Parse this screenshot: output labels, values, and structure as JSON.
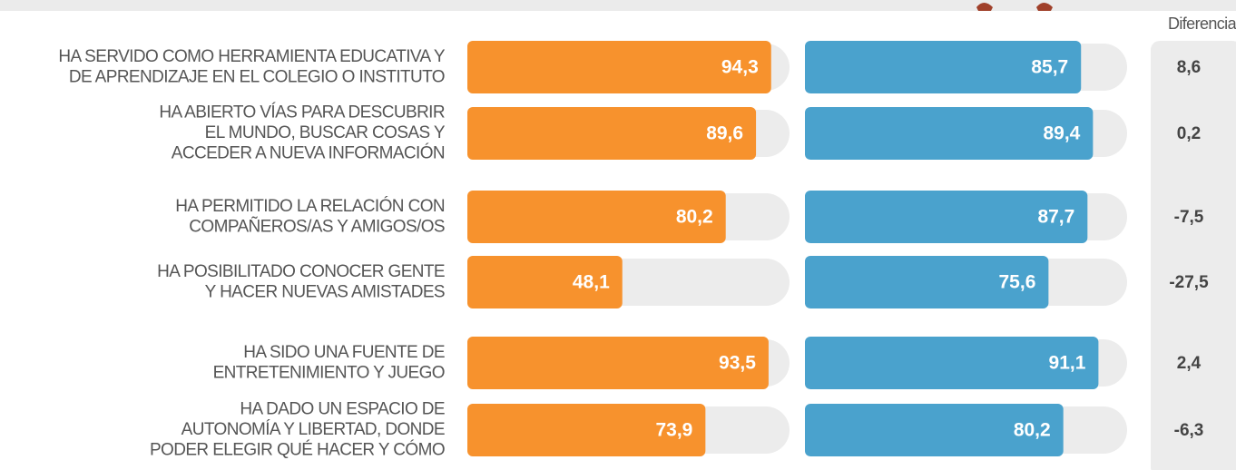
{
  "chart_data": {
    "type": "bar",
    "categories": [
      [
        "HA SERVIDO COMO HERRAMIENTA EDUCATIVA Y",
        "DE APRENDIZAJE EN EL COLEGIO O INSTITUTO"
      ],
      [
        "HA ABIERTO VÍAS PARA DESCUBRIR",
        "EL MUNDO, BUSCAR COSAS Y",
        "ACCEDER A NUEVA INFORMACIÓN"
      ],
      [
        "HA PERMITIDO LA RELACIÓN CON",
        "COMPAÑEROS/AS Y AMIGOS/OS"
      ],
      [
        "HA POSIBILITADO CONOCER GENTE",
        "Y HACER NUEVAS AMISTADES"
      ],
      [
        "HA SIDO UNA FUENTE DE",
        "ENTRETENIMIENTO Y JUEGO"
      ],
      [
        "HA DADO UN ESPACIO DE",
        "AUTONOMÍA Y LIBERTAD, DONDE",
        "PODER ELEGIR QUÉ HACER Y CÓMO"
      ]
    ],
    "series": [
      {
        "color": "#f7922d",
        "values": [
          94.3,
          89.6,
          80.2,
          48.1,
          93.5,
          73.9
        ],
        "value_labels": [
          "94,3",
          "89,6",
          "80,2",
          "48,1",
          "93,5",
          "73,9"
        ]
      },
      {
        "color": "#4aa2cd",
        "values": [
          85.7,
          89.4,
          87.7,
          75.6,
          91.1,
          80.2
        ],
        "value_labels": [
          "85,7",
          "89,4",
          "87,7",
          "75,6",
          "91,1",
          "80,2"
        ]
      }
    ],
    "difference": {
      "name": "Diferencia",
      "values": [
        8.6,
        0.2,
        -7.5,
        -27.5,
        2.4,
        -6.3
      ],
      "value_labels": [
        "8,6",
        "0,2",
        "-7,5",
        "-27,5",
        "2,4",
        "-6,3"
      ]
    },
    "xlim": [
      0,
      100
    ]
  }
}
